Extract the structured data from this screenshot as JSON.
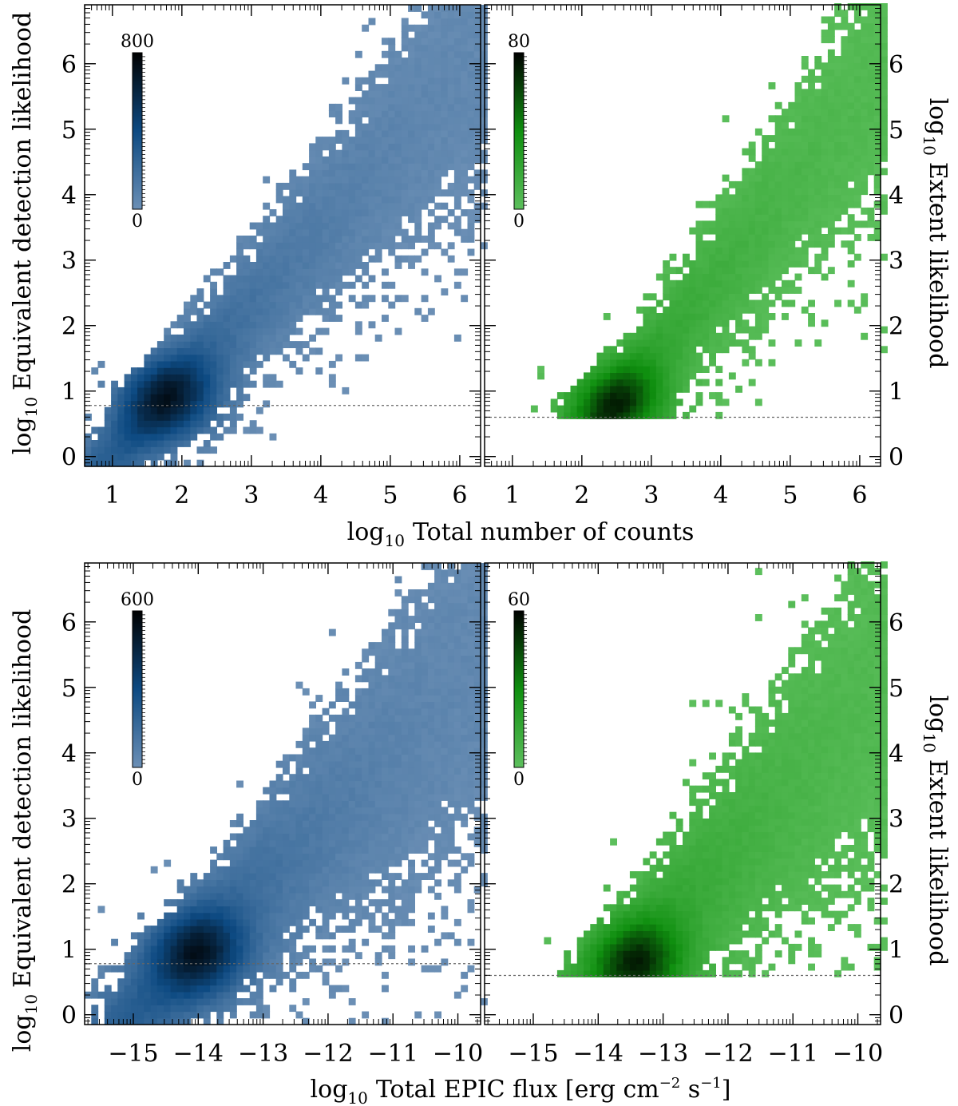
{
  "chart_data": [
    {
      "type": "heatmap",
      "id": "top-left",
      "panel": "top-left",
      "cmap": "blue",
      "xlabel": "log10 Total number of counts",
      "ylabel": "log10 Equivalent detection likelihood",
      "xlim": [
        0.6,
        6.3
      ],
      "ylim": [
        -0.15,
        6.9
      ],
      "xticks": [
        "1",
        "2",
        "3",
        "4",
        "5",
        "6"
      ],
      "yticks": [
        "0",
        "1",
        "2",
        "3",
        "4",
        "5",
        "6"
      ],
      "colorbar": {
        "max_label": "800",
        "min_label": "0",
        "max": 800,
        "min": 0
      },
      "threshold_line": 0.78,
      "density_model": {
        "x_start": 1.8,
        "y_start": 0.9,
        "slope": 1.15,
        "width": 0.55
      },
      "xtick_values": [
        1,
        2,
        3,
        4,
        5,
        6
      ],
      "ytick_values": [
        0,
        1,
        2,
        3,
        4,
        5,
        6
      ]
    },
    {
      "type": "heatmap",
      "id": "top-right",
      "panel": "top-right",
      "cmap": "green",
      "xlabel": "log10 Total number of counts",
      "ylabel": "log10 Extent likelihood",
      "xlim": [
        0.6,
        6.3
      ],
      "ylim": [
        -0.15,
        6.9
      ],
      "xticks": [
        "1",
        "2",
        "3",
        "4",
        "5",
        "6"
      ],
      "yticks": [
        "0",
        "1",
        "2",
        "3",
        "4",
        "5",
        "6"
      ],
      "colorbar": {
        "max_label": "80",
        "min_label": "0",
        "max": 80,
        "min": 0
      },
      "threshold_line": 0.6,
      "density_model": {
        "x_start": 2.5,
        "y_start": 0.8,
        "slope": 1.3,
        "width": 0.55
      },
      "xtick_values": [
        1,
        2,
        3,
        4,
        5,
        6
      ],
      "ytick_values": [
        0,
        1,
        2,
        3,
        4,
        5,
        6
      ]
    },
    {
      "type": "heatmap",
      "id": "bottom-left",
      "panel": "bottom-left",
      "cmap": "blue",
      "xlabel": "log10 Total EPIC flux [erg cm−2 s−1]",
      "ylabel": "log10 Equivalent detection likelihood",
      "xlim": [
        -15.75,
        -9.65
      ],
      "ylim": [
        -0.15,
        6.9
      ],
      "xticks": [
        "−15",
        "−14",
        "−13",
        "−12",
        "−11",
        "−10"
      ],
      "yticks": [
        "0",
        "1",
        "2",
        "3",
        "4",
        "5",
        "6"
      ],
      "colorbar": {
        "max_label": "600",
        "min_label": "0",
        "max": 600,
        "min": 0
      },
      "threshold_line": 0.78,
      "density_model": {
        "x_start": -14.0,
        "y_start": 0.95,
        "slope": 1.0,
        "width": 0.75
      },
      "xtick_values": [
        -15,
        -14,
        -13,
        -12,
        -11,
        -10
      ],
      "ytick_values": [
        0,
        1,
        2,
        3,
        4,
        5,
        6
      ]
    },
    {
      "type": "heatmap",
      "id": "bottom-right",
      "panel": "bottom-right",
      "cmap": "green",
      "xlabel": "log10 Total EPIC flux [erg cm−2 s−1]",
      "ylabel": "log10 Extent likelihood",
      "xlim": [
        -15.75,
        -9.65
      ],
      "ylim": [
        -0.15,
        6.9
      ],
      "xticks": [
        "−15",
        "−14",
        "−13",
        "−12",
        "−11",
        "−10"
      ],
      "yticks": [
        "0",
        "1",
        "2",
        "3",
        "4",
        "5",
        "6"
      ],
      "colorbar": {
        "max_label": "60",
        "min_label": "0",
        "max": 60,
        "min": 0
      },
      "threshold_line": 0.6,
      "density_model": {
        "x_start": -13.4,
        "y_start": 0.8,
        "slope": 1.1,
        "width": 0.8
      },
      "xtick_values": [
        -15,
        -14,
        -13,
        -12,
        -11,
        -10
      ],
      "ytick_values": [
        0,
        1,
        2,
        3,
        4,
        5,
        6
      ]
    }
  ],
  "labels": {
    "y_left_prefix": "log",
    "y_left_sub": "10",
    "y_left_text": "Equivalent detection likelihood",
    "y_right_prefix": "log",
    "y_right_sub": "10",
    "y_right_text": "Extent likelihood",
    "x_top_prefix": "log",
    "x_top_sub": "10",
    "x_top_text": "Total number of counts",
    "x_bottom_prefix": "log",
    "x_bottom_sub": "10",
    "x_bottom_text": "Total EPIC flux [erg cm",
    "x_bottom_exp1": "−2",
    "x_bottom_mid": " s",
    "x_bottom_exp2": "−1",
    "x_bottom_end": "]"
  },
  "colors": {
    "blue_low": "#6b8fb5",
    "blue_high": "#000000",
    "blue_mid": "#0d4a82",
    "green_low": "#5cbf5c",
    "green_mid": "#0f8f0f",
    "green_high": "#000000"
  }
}
